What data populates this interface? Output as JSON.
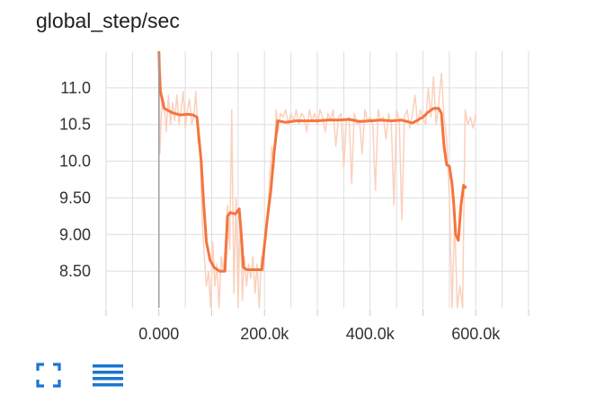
{
  "card": {
    "title": "global_step/sec"
  },
  "toolbar": {
    "expand_icon": "fullscreen-icon",
    "data_icon": "data-table-icon",
    "accent": "#1976d2"
  },
  "chart_data": {
    "type": "line",
    "title": "global_step/sec",
    "xlabel": "",
    "ylabel": "",
    "xlim": [
      -100000,
      700000
    ],
    "ylim": [
      8.0,
      11.5
    ],
    "x_ticks": [
      0,
      200000,
      400000,
      600000
    ],
    "x_tick_labels": [
      "0.000",
      "200.0k",
      "400.0k",
      "600.0k"
    ],
    "y_ticks": [
      8.5,
      9.0,
      9.5,
      10.0,
      10.5,
      11.0
    ],
    "y_tick_labels": [
      "8.50",
      "9.00",
      "9.50",
      "10.0",
      "10.5",
      "11.0"
    ],
    "grid": true,
    "colors": {
      "smoothed": "#f4743e",
      "raw": "#fbd0bd",
      "zero_line": "#9e9e9e",
      "grid": "#dddddd"
    },
    "series": [
      {
        "role": "smoothed",
        "x": [
          0,
          1000,
          3000,
          10000,
          25000,
          40000,
          55000,
          65000,
          72000,
          80000,
          85000,
          90000,
          97000,
          105000,
          115000,
          125000,
          130000,
          135000,
          145000,
          152000,
          156000,
          160000,
          167000,
          175000,
          185000,
          195000,
          205000,
          212000,
          218000,
          225000,
          240000,
          260000,
          280000,
          300000,
          320000,
          340000,
          360000,
          380000,
          400000,
          420000,
          440000,
          460000,
          480000,
          500000,
          510000,
          520000,
          530000,
          535000,
          540000,
          545000,
          550000,
          555000,
          558000,
          562000,
          567000,
          572000,
          577000,
          582000
        ],
        "values": [
          11.5,
          11.25,
          10.95,
          10.72,
          10.66,
          10.63,
          10.64,
          10.63,
          10.6,
          10.0,
          9.4,
          8.9,
          8.65,
          8.55,
          8.5,
          8.5,
          9.25,
          9.3,
          9.28,
          9.35,
          9.0,
          8.55,
          8.52,
          8.52,
          8.52,
          8.52,
          9.2,
          9.6,
          10.1,
          10.55,
          10.53,
          10.55,
          10.55,
          10.55,
          10.56,
          10.56,
          10.57,
          10.54,
          10.55,
          10.56,
          10.55,
          10.56,
          10.52,
          10.6,
          10.67,
          10.72,
          10.72,
          10.65,
          10.2,
          9.95,
          9.93,
          9.7,
          9.45,
          9.0,
          8.92,
          9.4,
          9.67,
          9.63
        ]
      },
      {
        "role": "raw",
        "x": [
          0,
          2000,
          6000,
          10000,
          14000,
          18000,
          22000,
          26000,
          30000,
          34000,
          38000,
          42000,
          46000,
          50000,
          54000,
          58000,
          62000,
          66000,
          70000,
          74000,
          78000,
          82000,
          86000,
          90000,
          94000,
          98000,
          102000,
          106000,
          110000,
          114000,
          118000,
          122000,
          126000,
          130000,
          134000,
          138000,
          142000,
          146000,
          150000,
          154000,
          158000,
          162000,
          166000,
          170000,
          174000,
          178000,
          182000,
          186000,
          190000,
          194000,
          198000,
          202000,
          206000,
          210000,
          214000,
          218000,
          222000,
          226000,
          230000,
          235000,
          240000,
          245000,
          250000,
          255000,
          260000,
          265000,
          270000,
          275000,
          280000,
          285000,
          290000,
          295000,
          300000,
          305000,
          310000,
          315000,
          320000,
          325000,
          330000,
          335000,
          340000,
          345000,
          350000,
          355000,
          360000,
          365000,
          370000,
          375000,
          380000,
          385000,
          390000,
          395000,
          400000,
          405000,
          410000,
          415000,
          420000,
          425000,
          430000,
          435000,
          440000,
          445000,
          450000,
          455000,
          460000,
          465000,
          470000,
          475000,
          480000,
          485000,
          490000,
          495000,
          500000,
          505000,
          510000,
          515000,
          520000,
          525000,
          530000,
          535000,
          540000,
          545000,
          550000,
          555000,
          560000,
          565000,
          570000,
          575000,
          580000,
          585000,
          590000,
          595000,
          600000
        ],
        "values": [
          11.5,
          10.1,
          10.9,
          10.8,
          10.4,
          10.9,
          10.5,
          10.8,
          10.55,
          10.9,
          10.5,
          10.7,
          10.95,
          10.45,
          10.7,
          10.85,
          10.5,
          10.6,
          10.95,
          10.3,
          10.1,
          9.2,
          8.7,
          8.3,
          8.5,
          8.0,
          8.9,
          8.3,
          8.6,
          8.0,
          8.7,
          8.5,
          8.9,
          9.4,
          8.8,
          10.7,
          8.2,
          9.5,
          8.0,
          9.3,
          8.1,
          8.7,
          8.3,
          8.6,
          8.4,
          8.7,
          8.2,
          8.6,
          8.0,
          8.7,
          8.5,
          9.0,
          9.3,
          9.8,
          10.2,
          9.9,
          10.7,
          10.4,
          10.65,
          10.6,
          10.7,
          10.5,
          10.65,
          10.55,
          10.7,
          10.5,
          10.65,
          10.6,
          10.4,
          10.7,
          10.55,
          10.65,
          10.5,
          10.7,
          10.6,
          10.4,
          10.65,
          10.55,
          10.7,
          10.2,
          10.6,
          10.65,
          9.9,
          10.55,
          10.6,
          9.7,
          10.65,
          10.5,
          10.55,
          10.1,
          10.7,
          10.55,
          10.6,
          10.5,
          9.6,
          10.7,
          10.55,
          10.6,
          10.3,
          10.65,
          10.5,
          9.4,
          10.7,
          10.55,
          9.2,
          10.6,
          10.7,
          10.45,
          10.65,
          10.9,
          10.5,
          10.7,
          10.6,
          10.5,
          11.0,
          10.6,
          11.15,
          10.5,
          10.8,
          11.2,
          10.6,
          10.3,
          9.5,
          8.0,
          9.2,
          8.0,
          8.3,
          8.0,
          10.7,
          10.5,
          10.6,
          10.45,
          10.65
        ]
      }
    ]
  }
}
